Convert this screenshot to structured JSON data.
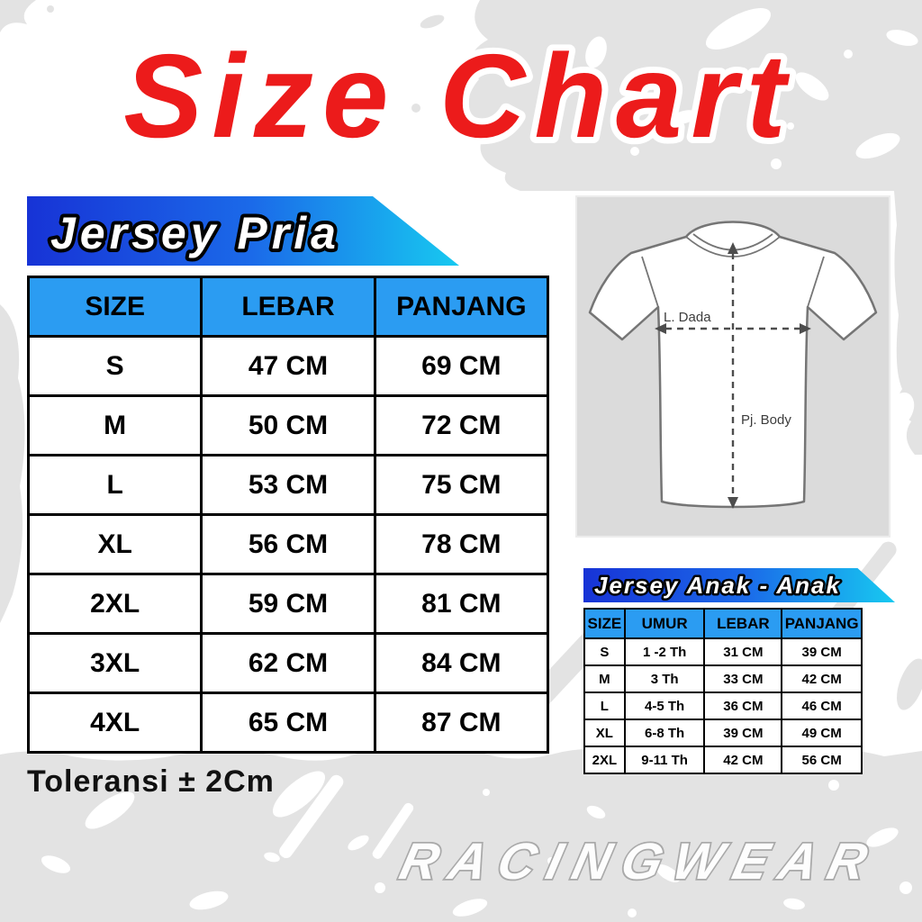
{
  "page": {
    "title": "Size Chart",
    "tolerance_note": "Toleransi ± 2Cm",
    "brand_watermark": "RACINGWEAR"
  },
  "sections": {
    "pria": {
      "banner_label": "Jersey Pria"
    },
    "anak": {
      "banner_label": "Jersey Anak - Anak"
    }
  },
  "diagram": {
    "chest_label": "L. Dada",
    "body_label": "Pj. Body"
  },
  "chart_data": [
    {
      "type": "table",
      "title": "Jersey Pria",
      "columns": [
        "SIZE",
        "LEBAR",
        "PANJANG"
      ],
      "rows": [
        [
          "S",
          "47 CM",
          "69 CM"
        ],
        [
          "M",
          "50 CM",
          "72 CM"
        ],
        [
          "L",
          "53 CM",
          "75 CM"
        ],
        [
          "XL",
          "56 CM",
          "78 CM"
        ],
        [
          "2XL",
          "59 CM",
          "81 CM"
        ],
        [
          "3XL",
          "62 CM",
          "84 CM"
        ],
        [
          "4XL",
          "65 CM",
          "87 CM"
        ]
      ]
    },
    {
      "type": "table",
      "title": "Jersey Anak - Anak",
      "columns": [
        "SIZE",
        "UMUR",
        "LEBAR",
        "PANJANG"
      ],
      "rows": [
        [
          "S",
          "1 -2 Th",
          "31 CM",
          "39 CM"
        ],
        [
          "M",
          "3 Th",
          "33 CM",
          "42 CM"
        ],
        [
          "L",
          "4-5 Th",
          "36 CM",
          "46 CM"
        ],
        [
          "XL",
          "6-8 Th",
          "39 CM",
          "49 CM"
        ],
        [
          "2XL",
          "9-11 Th",
          "42 CM",
          "56 CM"
        ]
      ]
    }
  ],
  "colors": {
    "title_red": "#ec1b1b",
    "table_header_blue": "#2b9cf2",
    "banner_blue_dark": "#1733d6",
    "banner_cyan": "#17c9f0",
    "splatter_gray": "#e3e3e3",
    "panel_gray": "#dbdbdb",
    "watermark_gray": "#a9a9a9"
  }
}
